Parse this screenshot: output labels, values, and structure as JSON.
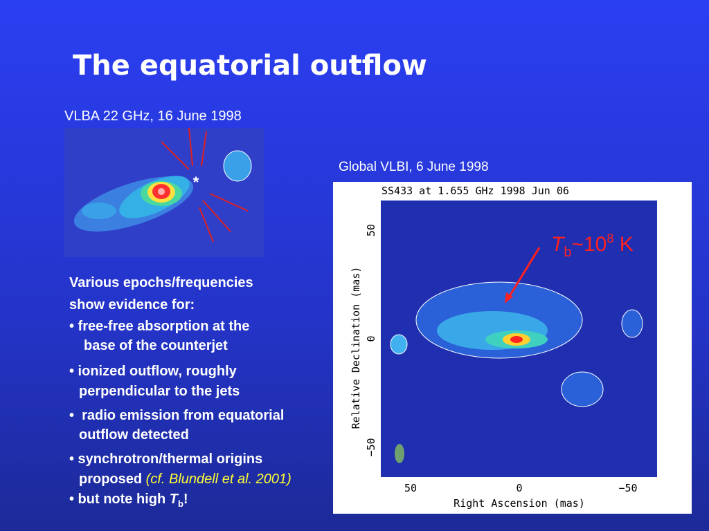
{
  "title": "The equatorial outflow",
  "left_image": {
    "caption": "VLBA 22 GHz, 16 June 1998",
    "marker": "*"
  },
  "right_image": {
    "caption": "Global VLBI, 6 June 1998",
    "plot_title": "SS433 at 1.655 GHz 1998 Jun 06",
    "y_label": "Relative Declination  (mas)",
    "y_ticks": [
      "50",
      "0",
      "−50"
    ],
    "x_label": "Right Ascension  (mas)",
    "x_ticks": [
      "50",
      "0",
      "−50"
    ],
    "annotation": {
      "symbol": "T",
      "subscript": "b",
      "approx": "~10",
      "exponent": "8",
      "unit": " K"
    }
  },
  "body": {
    "lines": [
      [
        "Various epochs/frequencies"
      ],
      [
        "show evidence for:"
      ],
      [
        "• free-free absorption at the"
      ],
      [
        "base of the counterjet"
      ],
      [
        "• ionized outflow, roughly"
      ],
      [
        "perpendicular to the jets"
      ],
      [
        "•  radio emission from equatorial"
      ],
      [
        "outflow detected"
      ],
      [
        "• synchrotron/thermal origins"
      ],
      [
        "proposed ",
        "(cf. Blundell et al. 2001)"
      ],
      [
        "• but note high ",
        "T",
        "b",
        "!"
      ]
    ]
  }
}
